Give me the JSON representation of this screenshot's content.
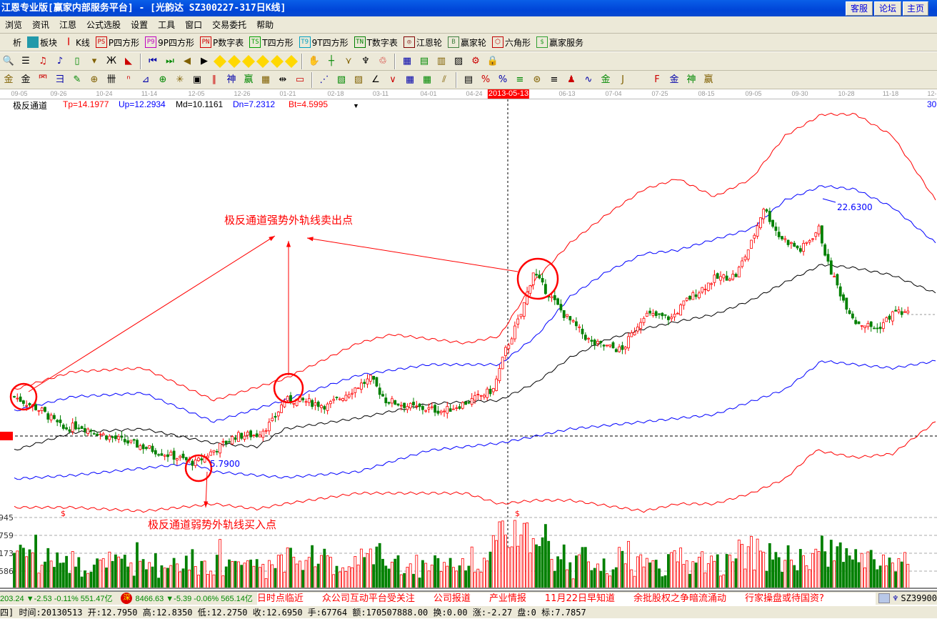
{
  "window": {
    "title": "江恩专业版[赢家内部服务平台] - [光韵达   SZ300227-317日K线]",
    "buttons": [
      "客服",
      "论坛",
      "主页"
    ]
  },
  "menu": [
    "浏览",
    "资讯",
    "江恩",
    "公式选股",
    "设置",
    "工具",
    "窗口",
    "交易委托",
    "帮助"
  ],
  "toolbar1": [
    {
      "icon": "ticker-icon",
      "code": "",
      "label": "析"
    },
    {
      "icon": "sector-blocks-icon",
      "code": "",
      "label": "板块"
    },
    {
      "icon": "candlestick-icon",
      "code": "",
      "label": "K线"
    },
    {
      "icon": "ps-icon",
      "code": "PS",
      "label": "P四方形",
      "color": "#d00000"
    },
    {
      "icon": "p9-icon",
      "code": "P9",
      "label": "9P四方形",
      "color": "#c000c0"
    },
    {
      "icon": "pn-icon",
      "code": "PN",
      "label": "P数字表",
      "color": "#d00000"
    },
    {
      "icon": "ts-icon",
      "code": "TS",
      "label": "T四方形",
      "color": "#00a000"
    },
    {
      "icon": "t9-icon",
      "code": "T9",
      "label": "9T四方形",
      "color": "#00a0c0"
    },
    {
      "icon": "tn-icon",
      "code": "TN",
      "label": "T数字表",
      "color": "#008000"
    },
    {
      "icon": "gann-wheel-icon",
      "code": "◎",
      "label": "江恩轮",
      "color": "#800000"
    },
    {
      "icon": "winner-wheel-icon",
      "code": "B",
      "label": "赢家轮",
      "color": "#408040"
    },
    {
      "icon": "hexagon-icon",
      "code": "⬡",
      "label": "六角形",
      "color": "#c00000"
    },
    {
      "icon": "dollar-icon",
      "code": "$",
      "label": "赢家服务",
      "color": "#30a030"
    }
  ],
  "toolbar2_icons": [
    "zoom-icon",
    "notes-icon",
    "period3-icon",
    "period9-icon",
    "bar-type-icon",
    "dropdown-icon",
    "indicator-icon",
    "volume-profile-icon",
    "first-icon",
    "last-icon",
    "prev-icon",
    "next-icon",
    "move-left-icon",
    "move-right-icon",
    "expand-icon",
    "shrink-icon",
    "zoom-in-icon",
    "zoom-out-icon",
    "hand-icon",
    "crosshair-icon",
    "line-tool-icon",
    "pattern-icon",
    "chain-icon",
    "calendar-icon",
    "calculator-icon",
    "report-icon",
    "save-icon",
    "network-icon",
    "lock-icon"
  ],
  "toolbar3_icons": [
    "gann-gold-icon",
    "gann-gold2-icon",
    "fan-icon",
    "spiral-icon",
    "rocket-icon",
    "cycle-icon",
    "grid-lines-icon",
    "n-squared-icon",
    "angle-icon",
    "target-icon",
    "star-icon",
    "square-icon",
    "parallel-icon",
    "shen-icon",
    "ying-icon",
    "count-icon",
    "measure-icon",
    "box-icon",
    "fan-lines-icon",
    "square-diag-icon",
    "square-diag2-icon",
    "angle-lines-icon",
    "zigzag-icon",
    "grid-icon",
    "grid2-icon",
    "slash-icon",
    "ruler-icon",
    "percent-fan-icon",
    "percent-icon",
    "percent-lines-icon",
    "gold-circle-icon",
    "gold-lines-icon",
    "fib-icon",
    "wave-icon",
    "gold-bar-icon",
    "j-lines-icon",
    "f-lines-icon",
    "gold-fan-icon",
    "shen-fan-icon",
    "ying-fan-icon",
    "four-fan-icon"
  ],
  "date_axis": [
    "09-05",
    "09-26",
    "10-24",
    "11-14",
    "12-05",
    "12-26",
    "01-21",
    "02-18",
    "03-11",
    "04-01",
    "04-24",
    "2013-05-13",
    "06-13",
    "07-04",
    "07-25",
    "08-15",
    "09-05",
    "09-30",
    "10-28",
    "11-18",
    "12-"
  ],
  "indicator": {
    "name": "极反通道",
    "tp": "Tp=14.1977",
    "up": "Up=12.2934",
    "md": "Md=10.1161",
    "dn": "Dn=7.2312",
    "bt": "Bt=4.5995",
    "right_label": "30"
  },
  "annotations": {
    "sell_text": "极反通道强势外轨线卖出点",
    "buy_text": "极反通道弱势外轨线买入点",
    "low_label": "5.7900",
    "high_label": "22.6300",
    "markers": [
      "$",
      "$"
    ]
  },
  "volume_axis": [
    "945",
    "759",
    "173",
    "586"
  ],
  "colors": {
    "up": "#ff0000",
    "down": "#008000",
    "upper_band": "#ff0000",
    "mid_band": "#0000ff",
    "middle": "#000000",
    "titlebar": "#0050e0"
  },
  "chart_data": {
    "type": "candlestick",
    "x_unit": "bar index",
    "price_markers": {
      "low": 5.79,
      "high": 22.63
    },
    "close_waypoints": [
      [
        0,
        10.17
      ],
      [
        9,
        9.25
      ],
      [
        16,
        8.09
      ],
      [
        21,
        8.32
      ],
      [
        30,
        7.63
      ],
      [
        42,
        6.94
      ],
      [
        53,
        6.25
      ],
      [
        59,
        5.88
      ],
      [
        65,
        6.71
      ],
      [
        72,
        7.63
      ],
      [
        79,
        7.73
      ],
      [
        84,
        8.55
      ],
      [
        88,
        9.94
      ],
      [
        93,
        9.94
      ],
      [
        102,
        9.57
      ],
      [
        112,
        10.86
      ],
      [
        116,
        11.32
      ],
      [
        121,
        9.94
      ],
      [
        130,
        9.48
      ],
      [
        140,
        9.25
      ],
      [
        149,
        9.94
      ],
      [
        156,
        10.63
      ],
      [
        160,
        13.16
      ],
      [
        165,
        15.47
      ],
      [
        169,
        18.23
      ],
      [
        172,
        17.31
      ],
      [
        179,
        15.47
      ],
      [
        188,
        13.62
      ],
      [
        198,
        13.16
      ],
      [
        205,
        15.47
      ],
      [
        214,
        15.24
      ],
      [
        219,
        16.39
      ],
      [
        228,
        17.77
      ],
      [
        235,
        18.0
      ],
      [
        240,
        20.08
      ],
      [
        244,
        22.38
      ],
      [
        249,
        20.54
      ],
      [
        256,
        19.61
      ],
      [
        262,
        20.99
      ],
      [
        265,
        18.69
      ],
      [
        270,
        16.39
      ],
      [
        274,
        15.01
      ],
      [
        281,
        14.55
      ],
      [
        287,
        15.7
      ],
      [
        291,
        15.47
      ]
    ],
    "bands": {
      "Tp": [
        [
          0,
          10.63
        ],
        [
          19,
          11.78
        ],
        [
          42,
          12.01
        ],
        [
          65,
          9.94
        ],
        [
          88,
          11.32
        ],
        [
          112,
          13.62
        ],
        [
          123,
          14.18
        ],
        [
          147,
          13.62
        ],
        [
          158,
          14.08
        ],
        [
          170,
          17.77
        ],
        [
          181,
          20.08
        ],
        [
          193,
          21.92
        ],
        [
          205,
          23.53
        ],
        [
          216,
          24.22
        ],
        [
          228,
          23.07
        ],
        [
          240,
          24.22
        ],
        [
          251,
          26.99
        ],
        [
          263,
          28.37
        ],
        [
          274,
          28.37
        ],
        [
          286,
          26.99
        ],
        [
          300,
          22.84
        ]
      ],
      "Up": [
        [
          0,
          9.25
        ],
        [
          19,
          10.17
        ],
        [
          42,
          10.4
        ],
        [
          65,
          8.55
        ],
        [
          88,
          9.94
        ],
        [
          112,
          11.55
        ],
        [
          135,
          12.24
        ],
        [
          158,
          12.24
        ],
        [
          170,
          14.08
        ],
        [
          181,
          16.62
        ],
        [
          193,
          18.23
        ],
        [
          205,
          19.38
        ],
        [
          216,
          19.61
        ],
        [
          228,
          20.31
        ],
        [
          240,
          21.0
        ],
        [
          251,
          22.84
        ],
        [
          263,
          23.76
        ],
        [
          274,
          23.53
        ],
        [
          286,
          22.38
        ],
        [
          300,
          20.08
        ]
      ],
      "Md": [
        [
          0,
          6.71
        ],
        [
          19,
          7.86
        ],
        [
          42,
          8.09
        ],
        [
          65,
          7.17
        ],
        [
          79,
          6.94
        ],
        [
          88,
          8.09
        ],
        [
          112,
          8.79
        ],
        [
          135,
          9.71
        ],
        [
          158,
          9.94
        ],
        [
          170,
          11.09
        ],
        [
          181,
          12.7
        ],
        [
          193,
          13.85
        ],
        [
          205,
          14.55
        ],
        [
          216,
          15.01
        ],
        [
          228,
          15.47
        ],
        [
          240,
          16.39
        ],
        [
          251,
          17.54
        ],
        [
          263,
          18.69
        ],
        [
          274,
          18.46
        ],
        [
          286,
          18.0
        ],
        [
          300,
          16.85
        ]
      ],
      "Dn": [
        [
          0,
          4.87
        ],
        [
          19,
          5.1
        ],
        [
          42,
          5.56
        ],
        [
          58,
          5.88
        ],
        [
          65,
          5.33
        ],
        [
          88,
          4.96
        ],
        [
          112,
          5.33
        ],
        [
          135,
          6.71
        ],
        [
          158,
          7.17
        ],
        [
          170,
          7.63
        ],
        [
          181,
          8.09
        ],
        [
          205,
          8.55
        ],
        [
          228,
          9.02
        ],
        [
          251,
          10.63
        ],
        [
          263,
          12.47
        ],
        [
          274,
          12.24
        ],
        [
          286,
          12.01
        ],
        [
          300,
          12.47
        ]
      ],
      "Bt": [
        [
          0,
          3.03
        ],
        [
          19,
          3.03
        ],
        [
          42,
          2.79
        ],
        [
          65,
          3.26
        ],
        [
          79,
          2.93
        ],
        [
          88,
          3.26
        ],
        [
          112,
          3.95
        ],
        [
          123,
          3.95
        ],
        [
          147,
          3.95
        ],
        [
          158,
          3.26
        ],
        [
          170,
          3.49
        ],
        [
          181,
          3.49
        ],
        [
          205,
          2.79
        ],
        [
          216,
          3.26
        ],
        [
          228,
          3.26
        ],
        [
          240,
          3.95
        ],
        [
          251,
          4.87
        ],
        [
          261,
          6.71
        ],
        [
          274,
          6.25
        ],
        [
          286,
          6.48
        ],
        [
          300,
          8.55
        ]
      ]
    }
  },
  "ticker": {
    "sh": "203.24 ▼-2.53 -0.11% 551.47亿",
    "sz_badge": "深",
    "sz": "8466.63 ▼-5.39 -0.06% 565.14亿",
    "news": [
      "日时点临近",
      "众公司互动平台受关注",
      "公司报道",
      "产业情报",
      "11月22日早知道",
      "余批股权之争暗流涌动",
      "行家操盘或待国资?"
    ],
    "code": "SZ39900"
  },
  "status": "四] 时间:20130513 开:12.7950 高:12.8350 低:12.2750 收:12.6950 手:67764 额:170507888.00 换:0.00 涨:-2.27 盘:0 标:7.7857"
}
